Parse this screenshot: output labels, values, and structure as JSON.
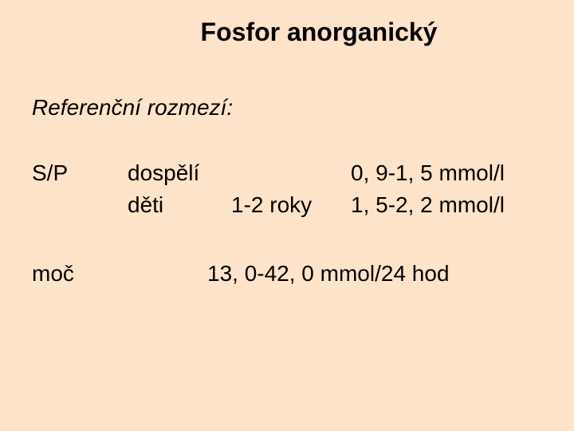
{
  "title": "Fosfor anorganický",
  "subhead": "Referenční rozmezí:",
  "sp": {
    "label": "S/P",
    "adults": {
      "who": "dospělí",
      "age": "",
      "value": "0, 9-1, 5 mmol/l"
    },
    "kids": {
      "who": "děti",
      "age": "1-2 roky",
      "value": "1, 5-2, 2 mmol/l"
    }
  },
  "urine": {
    "label": "moč",
    "value": "13, 0-42, 0 mmol/24 hod"
  },
  "style": {
    "background_color": "#fde3ca",
    "text_color": "#000000",
    "title_fontsize_pt": 24,
    "body_fontsize_pt": 21,
    "font_family": "Arial"
  }
}
